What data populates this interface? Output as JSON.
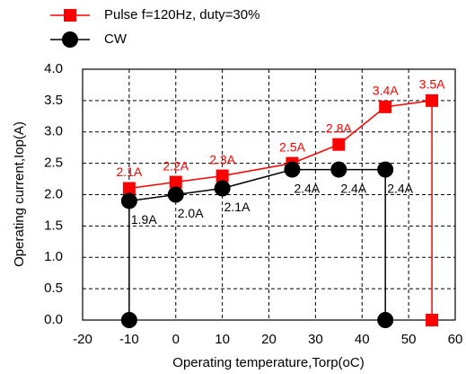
{
  "chart_data": {
    "type": "line",
    "xlabel": "Operating temperature,Torp(oC)",
    "ylabel": "Operating current,Iop(A)",
    "xlim": [
      -20,
      60
    ],
    "xticks": [
      -20,
      -10,
      0,
      10,
      20,
      30,
      40,
      50,
      60
    ],
    "ylim": [
      0,
      4
    ],
    "yticks": [
      {
        "value": 0,
        "label": "0.0"
      },
      0.5,
      {
        "value": 1,
        "label": "1.0"
      },
      1.5,
      {
        "value": 2,
        "label": "2.0"
      },
      2.5,
      {
        "value": 3,
        "label": "3.0"
      },
      3.5,
      {
        "value": 4,
        "label": "4.0"
      }
    ],
    "grid": true,
    "legend": "top-left",
    "series": [
      {
        "name": "Pulse f=120Hz, duty=30%",
        "color": "#ff0000",
        "marker": "square",
        "x": [
          -10,
          0,
          10,
          25,
          35,
          45,
          55,
          55
        ],
        "values": [
          2.1,
          2.2,
          2.3,
          2.5,
          2.8,
          3.4,
          3.5,
          0
        ],
        "value_labels": [
          "2.1A",
          "2.2A",
          "2.3A",
          "2.5A",
          "2.8A",
          "3.4A",
          "3.5A",
          null
        ]
      },
      {
        "name": "CW",
        "color": "#000000",
        "marker": "circle",
        "x": [
          -10,
          -10,
          0,
          10,
          25,
          35,
          45,
          45
        ],
        "values": [
          0,
          1.9,
          2.0,
          2.1,
          2.4,
          2.4,
          2.4,
          0
        ],
        "value_labels": [
          null,
          "1.9A",
          "2.0A",
          "2.1A",
          "2.4A",
          "2.4A",
          "2.4A",
          null
        ]
      }
    ]
  }
}
